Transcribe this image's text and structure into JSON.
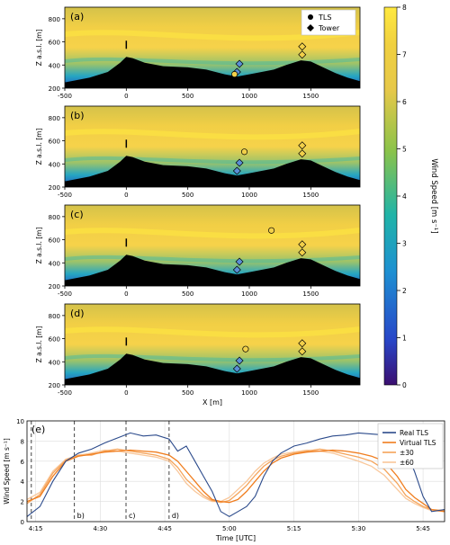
{
  "chart_data": [
    {
      "type": "heatmap",
      "panels": [
        "(a)",
        "(b)",
        "(c)",
        "(d)"
      ],
      "ylabel": "Z a.s.l. [m]",
      "xlabel": "X [m]",
      "x_ticks": [
        -500,
        0,
        500,
        1000,
        1500
      ],
      "y_ticks": [
        200,
        400,
        600,
        800
      ],
      "xlim": [
        -500,
        1900
      ],
      "ylim": [
        200,
        900
      ],
      "colorbar": {
        "label": "Wind Speed [m s⁻¹]",
        "range": [
          0,
          8
        ],
        "ticks": [
          0,
          1,
          2,
          3,
          4,
          5,
          6,
          7,
          8
        ],
        "colors": [
          "#3b0f70",
          "#2846c8",
          "#1e90d2",
          "#20b4a8",
          "#8bc34a",
          "#e6c84a",
          "#f0d040",
          "#ffe940"
        ]
      },
      "legend": [
        "TLS",
        "Tower"
      ],
      "legend_placement": "top-right of panel (a)",
      "tls": [
        [
          880,
          320
        ],
        [
          960,
          505
        ],
        [
          1180,
          680
        ],
        [
          970,
          510
        ]
      ],
      "tower": [
        [
          [
            920,
            410
          ],
          [
            900,
            340
          ],
          [
            1430,
            560
          ],
          [
            1430,
            490
          ]
        ],
        [
          [
            920,
            410
          ],
          [
            900,
            340
          ],
          [
            1430,
            560
          ],
          [
            1430,
            490
          ]
        ],
        [
          [
            920,
            410
          ],
          [
            900,
            340
          ],
          [
            1430,
            560
          ],
          [
            1430,
            490
          ]
        ],
        [
          [
            920,
            410
          ],
          [
            900,
            340
          ],
          [
            1430,
            560
          ],
          [
            1430,
            490
          ]
        ]
      ],
      "mast_x": 0,
      "terrain": {
        "x": [
          -500,
          -300,
          -150,
          -50,
          0,
          50,
          150,
          300,
          500,
          650,
          800,
          900,
          1000,
          1100,
          1200,
          1300,
          1420,
          1500,
          1600,
          1700,
          1800,
          1900
        ],
        "z": [
          250,
          290,
          340,
          420,
          470,
          460,
          420,
          390,
          380,
          360,
          320,
          300,
          320,
          340,
          360,
          400,
          440,
          430,
          380,
          330,
          290,
          260
        ]
      }
    },
    {
      "type": "line",
      "panel": "(e)",
      "xlabel": "Time [UTC]",
      "ylabel": "Wind Speed [m s⁻¹]",
      "x_ticks": [
        "4:15",
        "4:30",
        "4:45",
        "5:00",
        "5:15",
        "5:30",
        "5:45"
      ],
      "x_tick_minutes": [
        255,
        270,
        285,
        300,
        315,
        330,
        345
      ],
      "xlim": [
        253,
        350
      ],
      "ylim": [
        0,
        10
      ],
      "y_ticks": [
        0,
        2,
        4,
        6,
        8,
        10
      ],
      "grid": true,
      "legend_placement": "top-right",
      "vlines": [
        {
          "t": 254,
          "label": ""
        },
        {
          "t": 264,
          "label": "b)"
        },
        {
          "t": 276,
          "label": "c)"
        },
        {
          "t": 286,
          "label": "d)"
        }
      ],
      "series": [
        {
          "name": "Real TLS",
          "color": "#2b4a8b",
          "t": [
            253,
            256,
            259,
            262,
            265,
            268,
            271,
            274,
            277,
            280,
            283,
            286,
            288,
            290,
            292,
            294,
            296,
            298,
            300,
            302,
            304,
            306,
            308,
            310,
            312,
            315,
            318,
            321,
            324,
            327,
            330,
            333,
            336,
            339,
            341,
            343,
            345,
            347,
            350
          ],
          "values": [
            0.5,
            1.5,
            4.0,
            6.0,
            6.8,
            7.2,
            7.8,
            8.3,
            8.8,
            8.5,
            8.6,
            8.2,
            7.0,
            7.5,
            6.0,
            4.5,
            3.0,
            1.0,
            0.5,
            1.0,
            1.5,
            2.5,
            4.5,
            6.0,
            6.8,
            7.5,
            7.8,
            8.2,
            8.5,
            8.6,
            8.8,
            8.7,
            8.6,
            8.2,
            7.0,
            5.0,
            2.5,
            1.0,
            1.2
          ]
        },
        {
          "name": "Virtual TLS",
          "color": "#f07d1e",
          "t": [
            253,
            256,
            259,
            262,
            265,
            268,
            271,
            274,
            277,
            280,
            283,
            286,
            288,
            290,
            292,
            294,
            296,
            298,
            300,
            302,
            304,
            306,
            308,
            310,
            312,
            315,
            318,
            321,
            324,
            327,
            330,
            333,
            336,
            339,
            341,
            343,
            345,
            347,
            350
          ],
          "values": [
            2.0,
            2.5,
            4.5,
            6.0,
            6.5,
            6.7,
            6.9,
            7.0,
            7.1,
            7.0,
            6.9,
            6.6,
            6.0,
            5.0,
            4.0,
            3.0,
            2.2,
            2.0,
            1.9,
            2.2,
            3.0,
            4.0,
            5.0,
            5.8,
            6.3,
            6.7,
            6.9,
            7.0,
            7.1,
            7.0,
            6.8,
            6.5,
            6.0,
            4.5,
            3.2,
            2.4,
            1.8,
            1.2,
            1.0
          ]
        },
        {
          "name": "±30",
          "color": "#f5a45a",
          "t": [
            253,
            256,
            259,
            262,
            265,
            268,
            271,
            274,
            277,
            280,
            283,
            286,
            288,
            290,
            292,
            294,
            296,
            298,
            300,
            302,
            304,
            306,
            308,
            310,
            312,
            315,
            318,
            321,
            324,
            327,
            330,
            333,
            336,
            339,
            341,
            343,
            345,
            347,
            350
          ],
          "values": [
            1.8,
            2.7,
            4.8,
            6.1,
            6.6,
            6.6,
            7.0,
            7.2,
            7.0,
            6.8,
            6.6,
            6.2,
            5.4,
            4.2,
            3.4,
            2.6,
            2.1,
            1.9,
            2.1,
            2.8,
            3.6,
            4.6,
            5.5,
            6.1,
            6.5,
            6.8,
            7.0,
            7.2,
            7.0,
            6.7,
            6.4,
            6.0,
            5.2,
            3.8,
            2.6,
            2.0,
            1.5,
            1.2,
            1.1
          ]
        },
        {
          "name": "±60",
          "color": "#f9c79a",
          "t": [
            253,
            256,
            259,
            262,
            265,
            268,
            271,
            274,
            277,
            280,
            283,
            286,
            288,
            290,
            292,
            294,
            296,
            298,
            300,
            302,
            304,
            306,
            308,
            310,
            312,
            315,
            318,
            321,
            324,
            327,
            330,
            333,
            336,
            339,
            341,
            343,
            345,
            347,
            350
          ],
          "values": [
            2.2,
            2.9,
            5.0,
            6.2,
            6.6,
            6.8,
            7.1,
            7.0,
            6.8,
            6.6,
            6.4,
            6.0,
            5.0,
            3.8,
            3.0,
            2.4,
            2.0,
            2.0,
            2.4,
            3.2,
            4.0,
            5.0,
            5.8,
            6.3,
            6.7,
            6.9,
            7.1,
            7.0,
            6.8,
            6.4,
            6.0,
            5.5,
            4.6,
            3.2,
            2.3,
            1.8,
            1.4,
            1.1,
            1.0
          ]
        }
      ]
    }
  ]
}
